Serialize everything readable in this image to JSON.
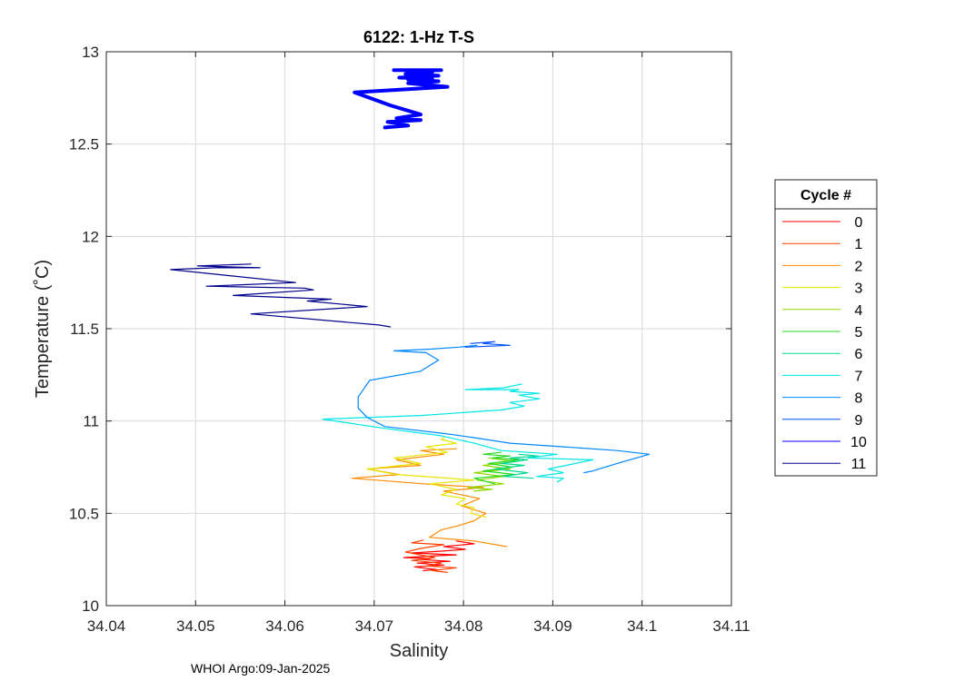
{
  "footer_text": "WHOI Argo:09-Jan-2025",
  "chart_data": {
    "type": "line",
    "title": "6122: 1-Hz T-S",
    "xlabel": "Salinity",
    "ylabel": "Temperature (˚C)",
    "xlim": [
      34.04,
      34.11
    ],
    "ylim": [
      10,
      13
    ],
    "xticks": [
      34.04,
      34.05,
      34.06,
      34.07,
      34.08,
      34.09,
      34.1,
      34.11
    ],
    "xtick_labels": [
      "34.04",
      "34.05",
      "34.06",
      "34.07",
      "34.08",
      "34.09",
      "34.1",
      "34.11"
    ],
    "yticks": [
      10,
      10.5,
      11,
      11.5,
      12,
      12.5,
      13
    ],
    "ytick_labels": [
      "10",
      "10.5",
      "11",
      "11.5",
      "12",
      "12.5",
      "13"
    ],
    "grid": true,
    "legend": {
      "title": "Cycle #",
      "placement": "right"
    },
    "series": [
      {
        "name": "0",
        "color": "#ff0000",
        "line_width": 1.2,
        "x": [
          34.0755,
          34.077,
          34.0745,
          34.0778,
          34.0748,
          34.0785,
          34.0752,
          34.0763,
          34.0733,
          34.0768,
          34.0792,
          34.0742,
          34.0775,
          34.0802,
          34.0778,
          34.0812,
          34.0792
        ],
        "y": [
          10.19,
          10.195,
          10.21,
          10.22,
          10.23,
          10.24,
          10.25,
          10.255,
          10.26,
          10.27,
          10.275,
          10.285,
          10.295,
          10.305,
          10.32,
          10.335,
          10.35
        ]
      },
      {
        "name": "1",
        "color": "#ff4000",
        "line_width": 1.2,
        "x": [
          34.0782,
          34.0765,
          34.0792,
          34.0758,
          34.0775,
          34.0742,
          34.0768,
          34.0735,
          34.0752,
          34.0778,
          34.0742,
          34.0755
        ],
        "y": [
          10.18,
          10.19,
          10.205,
          10.215,
          10.23,
          10.245,
          10.26,
          10.29,
          10.31,
          10.33,
          10.34,
          10.355
        ]
      },
      {
        "name": "2",
        "color": "#ff8c00",
        "line_width": 1.2,
        "x": [
          34.0848,
          34.0812,
          34.0762,
          34.0775,
          34.0792,
          34.0812,
          34.0825,
          34.0798,
          34.0818,
          34.0778,
          34.0822,
          34.0755,
          34.0675,
          34.0728,
          34.0692,
          34.0752,
          34.0725,
          34.0778,
          34.0752,
          34.0792
        ],
        "y": [
          10.32,
          10.35,
          10.37,
          10.41,
          10.43,
          10.46,
          10.5,
          10.54,
          10.58,
          10.62,
          10.64,
          10.66,
          10.69,
          10.71,
          10.74,
          10.76,
          10.79,
          10.82,
          10.84,
          10.85
        ]
      },
      {
        "name": "3",
        "color": "#e6e600",
        "line_width": 1.2,
        "x": [
          34.0825,
          34.0808,
          34.0812,
          34.0792,
          34.0802,
          34.0775,
          34.0792,
          34.0762,
          34.0812,
          34.0725,
          34.0692,
          34.0752,
          34.0722,
          34.0782,
          34.0758,
          34.0792,
          34.0775,
          34.0778
        ],
        "y": [
          10.48,
          10.5,
          10.53,
          10.55,
          10.58,
          10.6,
          10.63,
          10.66,
          10.68,
          10.71,
          10.74,
          10.77,
          10.8,
          10.83,
          10.86,
          10.88,
          10.9,
          10.91
        ]
      },
      {
        "name": "4",
        "color": "#90d800",
        "line_width": 1.2,
        "x": [
          34.0812,
          34.0832,
          34.0805,
          34.0845,
          34.0815,
          34.0845,
          34.0812,
          34.0852,
          34.0822,
          34.0858,
          34.0828
        ],
        "y": [
          10.62,
          10.63,
          10.64,
          10.66,
          10.68,
          10.7,
          10.72,
          10.74,
          10.76,
          10.78,
          10.8
        ]
      },
      {
        "name": "5",
        "color": "#20d820",
        "line_width": 1.2,
        "x": [
          34.0835,
          34.0812,
          34.0858,
          34.0822,
          34.0855,
          34.0828,
          34.0862,
          34.0832,
          34.0852,
          34.0822,
          34.0842
        ],
        "y": [
          10.66,
          10.69,
          10.71,
          10.73,
          10.75,
          10.77,
          10.79,
          10.8,
          10.81,
          10.82,
          10.83
        ]
      },
      {
        "name": "6",
        "color": "#00d890",
        "line_width": 1.2,
        "x": [
          34.0878,
          34.0845,
          34.0872,
          34.0835,
          34.0868,
          34.0842,
          34.0872,
          34.0852,
          34.0885,
          34.0862
        ],
        "y": [
          10.69,
          10.7,
          10.72,
          10.74,
          10.76,
          10.77,
          10.79,
          10.8,
          10.81,
          10.82
        ]
      },
      {
        "name": "7",
        "color": "#00e6e6",
        "line_width": 1.2,
        "x": [
          34.0905,
          34.0912,
          34.0882,
          34.0912,
          34.0895,
          34.0945,
          34.0872,
          34.0905,
          34.0842,
          34.0812,
          34.0775,
          34.0712,
          34.0642,
          34.0752,
          34.0842,
          34.0868,
          34.0852,
          34.0885,
          34.0862,
          34.0885,
          34.0852,
          34.0862,
          34.0802,
          34.0845,
          34.0865
        ],
        "y": [
          10.67,
          10.69,
          10.7,
          10.72,
          10.74,
          10.79,
          10.8,
          10.82,
          10.84,
          10.88,
          10.92,
          10.96,
          11.01,
          11.03,
          11.06,
          11.08,
          11.1,
          11.12,
          11.14,
          11.15,
          11.16,
          11.17,
          11.17,
          11.18,
          11.2
        ]
      },
      {
        "name": "8",
        "color": "#0088ff",
        "line_width": 1.2,
        "x": [
          34.0935,
          34.0945,
          34.0972,
          34.1008,
          34.0972,
          34.0912,
          34.0852,
          34.0812,
          34.0782,
          34.0712,
          34.0692,
          34.0682,
          34.0682,
          34.0695,
          34.0752,
          34.0772,
          34.0758,
          34.0722,
          34.0765,
          34.0795,
          34.0815
        ],
        "y": [
          10.72,
          10.73,
          10.77,
          10.82,
          10.84,
          10.86,
          10.88,
          10.91,
          10.93,
          10.97,
          11.02,
          11.07,
          11.13,
          11.22,
          11.27,
          11.33,
          11.37,
          11.38,
          11.39,
          11.4,
          11.41
        ]
      },
      {
        "name": "9",
        "color": "#0050ff",
        "line_width": 1.2,
        "x": [
          34.0802,
          34.0852,
          34.0822,
          34.0835,
          34.0808
        ],
        "y": [
          11.4,
          11.41,
          11.42,
          11.43,
          11.42
        ]
      },
      {
        "name": "10",
        "color": "#0000ff",
        "line_width": 4,
        "x": [
          34.0712,
          34.0738,
          34.0715,
          34.0752,
          34.0725,
          34.0752,
          34.0718,
          34.0678,
          34.0782,
          34.0738,
          34.0772,
          34.0738,
          34.0765,
          34.0728,
          34.0772,
          34.0735,
          34.0765,
          34.0738,
          34.0775,
          34.0722
        ],
        "y": [
          12.59,
          12.6,
          12.62,
          12.63,
          12.64,
          12.66,
          12.71,
          12.78,
          12.81,
          12.83,
          12.84,
          12.85,
          12.855,
          12.86,
          12.87,
          12.88,
          12.89,
          12.895,
          12.9,
          12.9
        ]
      },
      {
        "name": "11",
        "color": "#00008b",
        "line_width": 1.2,
        "x": [
          34.0718,
          34.0705,
          34.0562,
          34.0692,
          34.0625,
          34.0652,
          34.0542,
          34.0632,
          34.0622,
          34.0512,
          34.0612,
          34.0472,
          34.0522,
          34.0572,
          34.0502,
          34.0562
        ],
        "y": [
          11.51,
          11.52,
          11.58,
          11.62,
          11.65,
          11.66,
          11.68,
          11.71,
          11.72,
          11.73,
          11.75,
          11.82,
          11.83,
          11.83,
          11.84,
          11.85
        ]
      }
    ]
  }
}
